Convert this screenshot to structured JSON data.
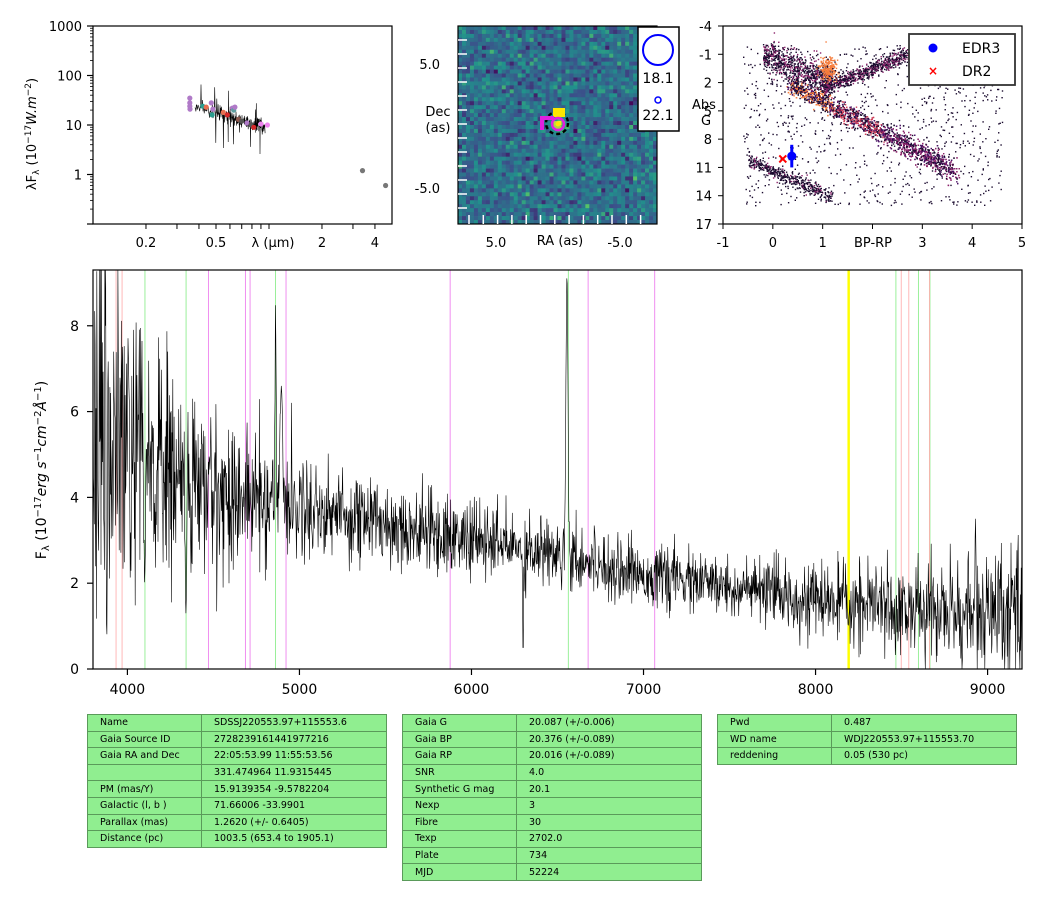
{
  "chart_data": [
    {
      "type": "scatter",
      "panel": "sed",
      "xlabel": "λ (μm)",
      "ylabel": "λF_λ (10⁻¹⁷W.m⁻²)",
      "xscale": "log",
      "yscale": "log",
      "xlim": [
        0.1,
        5
      ],
      "ylim": [
        0.1,
        1000
      ],
      "xticks": [
        "0.2",
        "0.5",
        "2",
        "4"
      ],
      "yticks": [
        "1000",
        "100",
        "10",
        "1"
      ],
      "points": [
        {
          "x": 0.355,
          "y": 35,
          "color": "#b07ac8"
        },
        {
          "x": 0.355,
          "y": 28,
          "color": "#b07ac8"
        },
        {
          "x": 0.355,
          "y": 24,
          "color": "#b07ac8"
        },
        {
          "x": 0.356,
          "y": 21,
          "color": "#b07ac8"
        },
        {
          "x": 0.42,
          "y": 24,
          "color": "#2a9d8f"
        },
        {
          "x": 0.44,
          "y": 23,
          "color": "#e76f51"
        },
        {
          "x": 0.47,
          "y": 28,
          "color": "#b07ac8"
        },
        {
          "x": 0.475,
          "y": 16,
          "color": "#2a9d8f"
        },
        {
          "x": 0.48,
          "y": 21,
          "color": "#b07ac8"
        },
        {
          "x": 0.55,
          "y": 18,
          "color": "#e76f51"
        },
        {
          "x": 0.58,
          "y": 16,
          "color": "#d62728"
        },
        {
          "x": 0.62,
          "y": 22,
          "color": "#b07ac8"
        },
        {
          "x": 0.63,
          "y": 20,
          "color": "#5f9ea0"
        },
        {
          "x": 0.64,
          "y": 23,
          "color": "#b07ac8"
        },
        {
          "x": 0.67,
          "y": 13,
          "color": "#8c564b"
        },
        {
          "x": 0.7,
          "y": 12,
          "color": "#555555"
        },
        {
          "x": 0.75,
          "y": 11,
          "color": "#b07ac8"
        },
        {
          "x": 0.79,
          "y": 10,
          "color": "#555555"
        },
        {
          "x": 0.82,
          "y": 9,
          "color": "#d62728"
        },
        {
          "x": 0.9,
          "y": 10.5,
          "color": "#ee82ee"
        },
        {
          "x": 0.98,
          "y": 10,
          "color": "#ee82ee"
        },
        {
          "x": 3.4,
          "y": 1.2,
          "color": "#777777"
        },
        {
          "x": 4.6,
          "y": 0.6,
          "color": "#777777"
        }
      ]
    },
    {
      "type": "heatmap",
      "panel": "cutout",
      "xlabel": "RA (as)",
      "ylabel": "Dec (as)",
      "xticks": [
        "5.0",
        "-5.0"
      ],
      "yticks": [
        "5.0",
        "-5.0"
      ],
      "legend": [
        {
          "label": "18.1"
        },
        {
          "label": "22.1"
        }
      ]
    },
    {
      "type": "scatter",
      "panel": "hr-diagram",
      "xlabel": "BP-RP",
      "ylabel": "Abs G",
      "xlim": [
        -1,
        5
      ],
      "ylim": [
        17,
        -4
      ],
      "xticks": [
        "-1",
        "0",
        "1",
        "",
        "3",
        "4",
        "5"
      ],
      "yticks": [
        "-4",
        "-1",
        "2",
        "5",
        "8",
        "11",
        "14",
        "17"
      ],
      "legend_position": "top-right",
      "series": [
        {
          "name": "EDR3",
          "x": 0.38,
          "y": 9.8,
          "yerr": 1.2,
          "color": "#0000ff"
        },
        {
          "name": "DR2",
          "x": 0.2,
          "y": 10.1,
          "color": "#ff0000"
        }
      ]
    },
    {
      "type": "line",
      "panel": "spectrum",
      "xlabel": "",
      "ylabel": "F_λ (10⁻¹⁷erg s⁻¹cm⁻²Å⁻¹)",
      "xlim": [
        3800,
        9200
      ],
      "ylim": [
        0,
        9.3
      ],
      "xticks": [
        "4000",
        "5000",
        "6000",
        "7000",
        "8000",
        "9000"
      ],
      "yticks": [
        "0",
        "2",
        "4",
        "6",
        "8"
      ],
      "continuum": [
        [
          3800,
          5.2
        ],
        [
          4000,
          5.0
        ],
        [
          4500,
          4.1
        ],
        [
          5000,
          3.8
        ],
        [
          5500,
          3.4
        ],
        [
          6000,
          3.0
        ],
        [
          6500,
          2.7
        ],
        [
          7000,
          2.2
        ],
        [
          7500,
          1.9
        ],
        [
          8000,
          1.6
        ],
        [
          8500,
          1.4
        ],
        [
          9000,
          1.25
        ],
        [
          9200,
          1.2
        ]
      ],
      "noise": [
        [
          3800,
          2.2
        ],
        [
          4000,
          1.8
        ],
        [
          4500,
          0.9
        ],
        [
          5000,
          0.6
        ],
        [
          5500,
          0.5
        ],
        [
          6000,
          0.45
        ],
        [
          6500,
          0.4
        ],
        [
          7000,
          0.35
        ],
        [
          7500,
          0.35
        ],
        [
          8000,
          0.4
        ],
        [
          8500,
          0.5
        ],
        [
          9000,
          0.7
        ],
        [
          9200,
          0.8
        ]
      ],
      "features": [
        {
          "x": 4861,
          "y": 8.6,
          "w": 4
        },
        {
          "x": 4895,
          "y": 6.6,
          "w": 10
        },
        {
          "x": 6300,
          "y": 0.2,
          "w": 3
        },
        {
          "x": 6555,
          "y": 9.2,
          "w": 8
        },
        {
          "x": 8930,
          "y": 3.5,
          "w": 3
        },
        {
          "x": 8190,
          "y": 1.0,
          "w": 6
        },
        {
          "x": 4340,
          "y": 1.3,
          "w": 6
        },
        {
          "x": 4100,
          "y": 2.0,
          "w": 6
        },
        {
          "x": 3880,
          "y": 0.3,
          "w": 3
        }
      ],
      "lines": [
        {
          "x": 3934,
          "color": "#ffb0b0"
        },
        {
          "x": 3969,
          "color": "#ffb0b0"
        },
        {
          "x": 4102,
          "color": "#90ee90"
        },
        {
          "x": 4341,
          "color": "#90ee90"
        },
        {
          "x": 4471,
          "color": "#ee82ee"
        },
        {
          "x": 4686,
          "color": "#ee82ee"
        },
        {
          "x": 4713,
          "color": "#ee82ee"
        },
        {
          "x": 4861,
          "color": "#90ee90"
        },
        {
          "x": 4922,
          "color": "#ee82ee"
        },
        {
          "x": 5876,
          "color": "#ee82ee"
        },
        {
          "x": 6563,
          "color": "#90ee90"
        },
        {
          "x": 6678,
          "color": "#ee82ee"
        },
        {
          "x": 7065,
          "color": "#ee82ee"
        },
        {
          "x": 8190,
          "color": "#ffff00"
        },
        {
          "x": 8195,
          "color": "#ffff00"
        },
        {
          "x": 8467,
          "color": "#90ee90"
        },
        {
          "x": 8498,
          "color": "#ffb0b0"
        },
        {
          "x": 8542,
          "color": "#ffb0b0"
        },
        {
          "x": 8598,
          "color": "#90ee90"
        },
        {
          "x": 8665,
          "color": "#90ee90"
        },
        {
          "x": 8662,
          "color": "#ffb0b0"
        }
      ]
    }
  ],
  "tables": [
    [
      [
        "Name",
        "SDSSJ220553.97+115553.6"
      ],
      [
        "Gaia Source ID",
        "2728239161441977216"
      ],
      [
        "Gaia RA and Dec",
        "22:05:53.99    11:55:53.56"
      ],
      [
        "",
        "331.474964    11.9315445"
      ],
      [
        "PM (mas/Y)",
        "15.9139354    -9.5782204"
      ],
      [
        "Galactic (l, b )",
        "71.66006    -33.9901"
      ],
      [
        "Parallax (mas)",
        "1.2620 (+/- 0.6405)"
      ],
      [
        "Distance (pc)",
        "1003.5 (653.4 to 1905.1)"
      ]
    ],
    [
      [
        "Gaia G",
        "20.087 (+/-0.006)"
      ],
      [
        "Gaia BP",
        "20.376 (+/-0.089)"
      ],
      [
        "Gaia RP",
        "20.016 (+/-0.089)"
      ],
      [
        "SNR",
        "4.0"
      ],
      [
        "Synthetic G mag",
        "20.1"
      ],
      [
        "Nexp",
        "3"
      ],
      [
        "Fibre",
        "30"
      ],
      [
        "Texp",
        "2702.0"
      ],
      [
        "Plate",
        "734"
      ],
      [
        "MJD",
        "52224"
      ]
    ],
    [
      [
        "Pwd",
        "0.487"
      ],
      [
        "WD name",
        "WDJ220553.97+115553.70"
      ],
      [
        "reddening",
        "0.05 (530 pc)"
      ]
    ]
  ]
}
